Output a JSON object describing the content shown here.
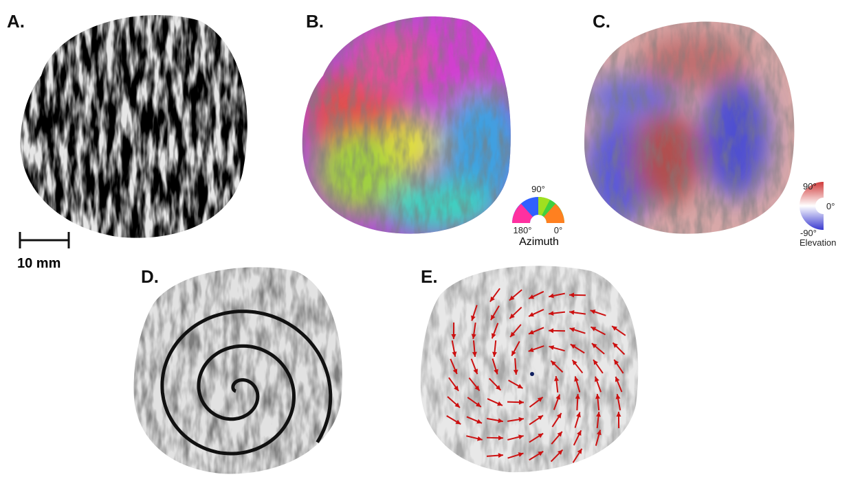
{
  "panels": [
    {
      "label": "A.",
      "scale_bar": "10 mm"
    },
    {
      "label": "B.",
      "legend": {
        "title": "Azimuth",
        "top": "90°",
        "left": "180°",
        "right": "0°"
      }
    },
    {
      "label": "C.",
      "legend": {
        "title": "Elevation",
        "top": "90°",
        "middle": "0°",
        "bottom": "-90°"
      }
    },
    {
      "label": "D."
    },
    {
      "label": "E."
    }
  ]
}
